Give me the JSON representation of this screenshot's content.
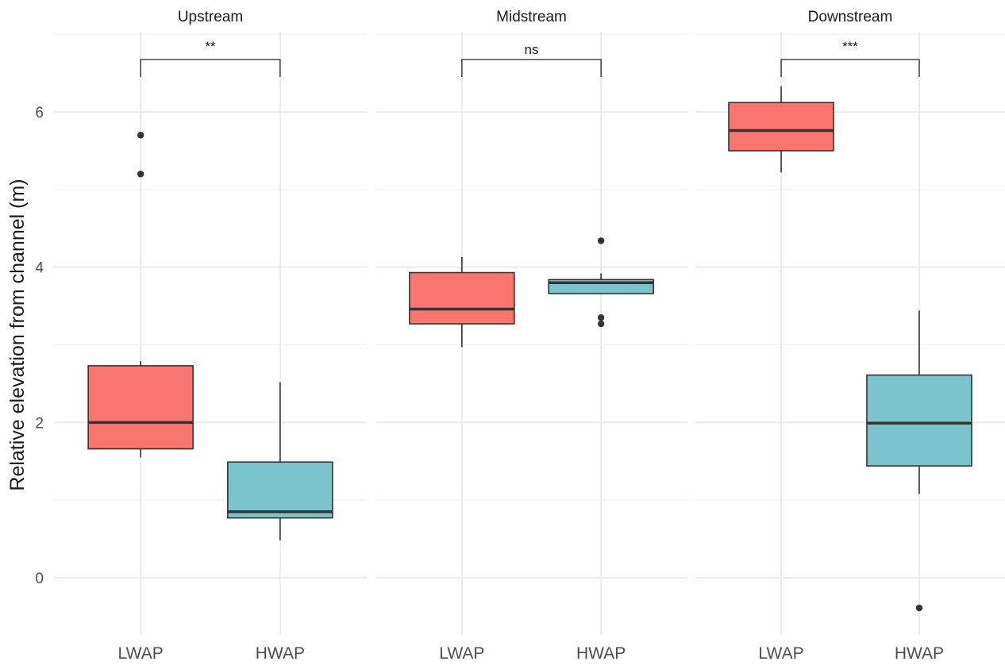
{
  "chart_data": {
    "type": "boxplot",
    "ylabel": "Relative elevation from channel (m)",
    "xlabel": "",
    "ylim": [
      -0.7,
      7.0
    ],
    "y_ticks": [
      0,
      2,
      4,
      6
    ],
    "y_tick_labels": [
      "0",
      "2",
      "4",
      "6"
    ],
    "grid": true,
    "legend": "none",
    "categories": [
      "LWAP",
      "HWAP"
    ],
    "colors": {
      "LWAP": "#F8766D",
      "HWAP": "#7AC5CD"
    },
    "panels": [
      {
        "name": "Upstream",
        "significance": "**",
        "boxes": [
          {
            "group": "LWAP",
            "whisker_low": 1.55,
            "q1": 1.66,
            "median": 2.0,
            "q3": 2.73,
            "whisker_high": 2.79,
            "outliers": [
              5.7,
              5.2
            ]
          },
          {
            "group": "HWAP",
            "whisker_low": 0.48,
            "q1": 0.77,
            "median": 0.85,
            "q3": 1.49,
            "whisker_high": 2.52,
            "outliers": []
          }
        ]
      },
      {
        "name": "Midstream",
        "significance": "ns",
        "boxes": [
          {
            "group": "LWAP",
            "whisker_low": 2.97,
            "q1": 3.27,
            "median": 3.46,
            "q3": 3.93,
            "whisker_high": 4.13,
            "outliers": []
          },
          {
            "group": "HWAP",
            "whisker_low": 3.66,
            "q1": 3.66,
            "median": 3.8,
            "q3": 3.84,
            "whisker_high": 3.92,
            "outliers": [
              4.34,
              3.35,
              3.27
            ]
          }
        ]
      },
      {
        "name": "Downstream",
        "significance": "***",
        "boxes": [
          {
            "group": "LWAP",
            "whisker_low": 5.22,
            "q1": 5.5,
            "median": 5.76,
            "q3": 6.12,
            "whisker_high": 6.33,
            "outliers": []
          },
          {
            "group": "HWAP",
            "whisker_low": 1.08,
            "q1": 1.44,
            "median": 1.99,
            "q3": 2.61,
            "whisker_high": 3.44,
            "outliers": [
              -0.39
            ]
          }
        ]
      }
    ]
  }
}
